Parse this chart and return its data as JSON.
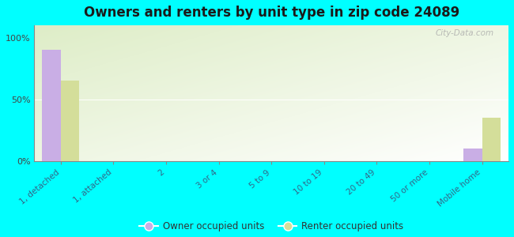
{
  "title": "Owners and renters by unit type in zip code 24089",
  "categories": [
    "1, detached",
    "1, attached",
    "2",
    "3 or 4",
    "5 to 9",
    "10 to 19",
    "20 to 49",
    "50 or more",
    "Mobile home"
  ],
  "owner_values": [
    90,
    0,
    0,
    0,
    0,
    0,
    0,
    0,
    10
  ],
  "renter_values": [
    65,
    0,
    0,
    0,
    0,
    0,
    0,
    0,
    35
  ],
  "owner_color": "#c9aee5",
  "renter_color": "#d4de9a",
  "background_color": "#00ffff",
  "yticks": [
    0,
    50,
    100
  ],
  "ylim": [
    0,
    110
  ],
  "watermark": "City-Data.com",
  "legend_owner": "Owner occupied units",
  "legend_renter": "Renter occupied units",
  "bar_width": 0.35
}
